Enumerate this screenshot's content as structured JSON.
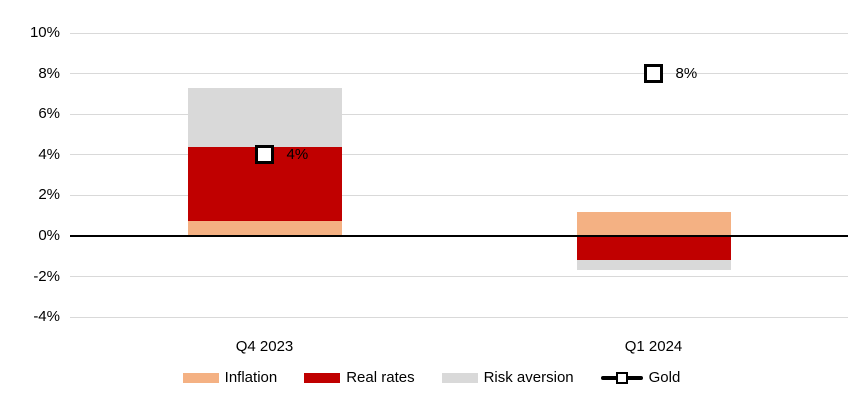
{
  "chart_data": {
    "type": "bar",
    "subtype": "stacked-column-with-point-markers",
    "title": "",
    "categories": [
      "Q4 2023",
      "Q1 2024"
    ],
    "series": [
      {
        "name": "Inflation",
        "color": "#F4B183",
        "values": [
          0.75,
          1.2
        ]
      },
      {
        "name": "Real rates",
        "color": "#C00000",
        "values": [
          3.65,
          -1.2
        ]
      },
      {
        "name": "Risk aversion",
        "color": "#D9D9D9",
        "values": [
          2.9,
          -0.5
        ]
      }
    ],
    "marker_series": {
      "name": "Gold",
      "values": [
        4,
        8
      ],
      "point_labels": [
        "4%",
        "8%"
      ],
      "marker_style": "white-square-black-border",
      "line_color": "#000000"
    },
    "y_axis": {
      "min": -4,
      "max": 10,
      "step": 2,
      "tick_labels": [
        "10%",
        "8%",
        "6%",
        "4%",
        "2%",
        "0%",
        "-2%",
        "-4%"
      ],
      "tick_values": [
        10,
        8,
        6,
        4,
        2,
        0,
        -2,
        -4
      ]
    },
    "x_axis": {
      "tick_labels": [
        "Q4 2023",
        "Q1 2024"
      ]
    },
    "grid": true,
    "legend_position": "bottom",
    "legend_items": [
      "Inflation",
      "Real rates",
      "Risk aversion",
      "Gold"
    ],
    "colors": {
      "gridline": "#D9D9D9",
      "zero_line": "#000000",
      "text": "#000000",
      "background": "#FFFFFF"
    }
  }
}
